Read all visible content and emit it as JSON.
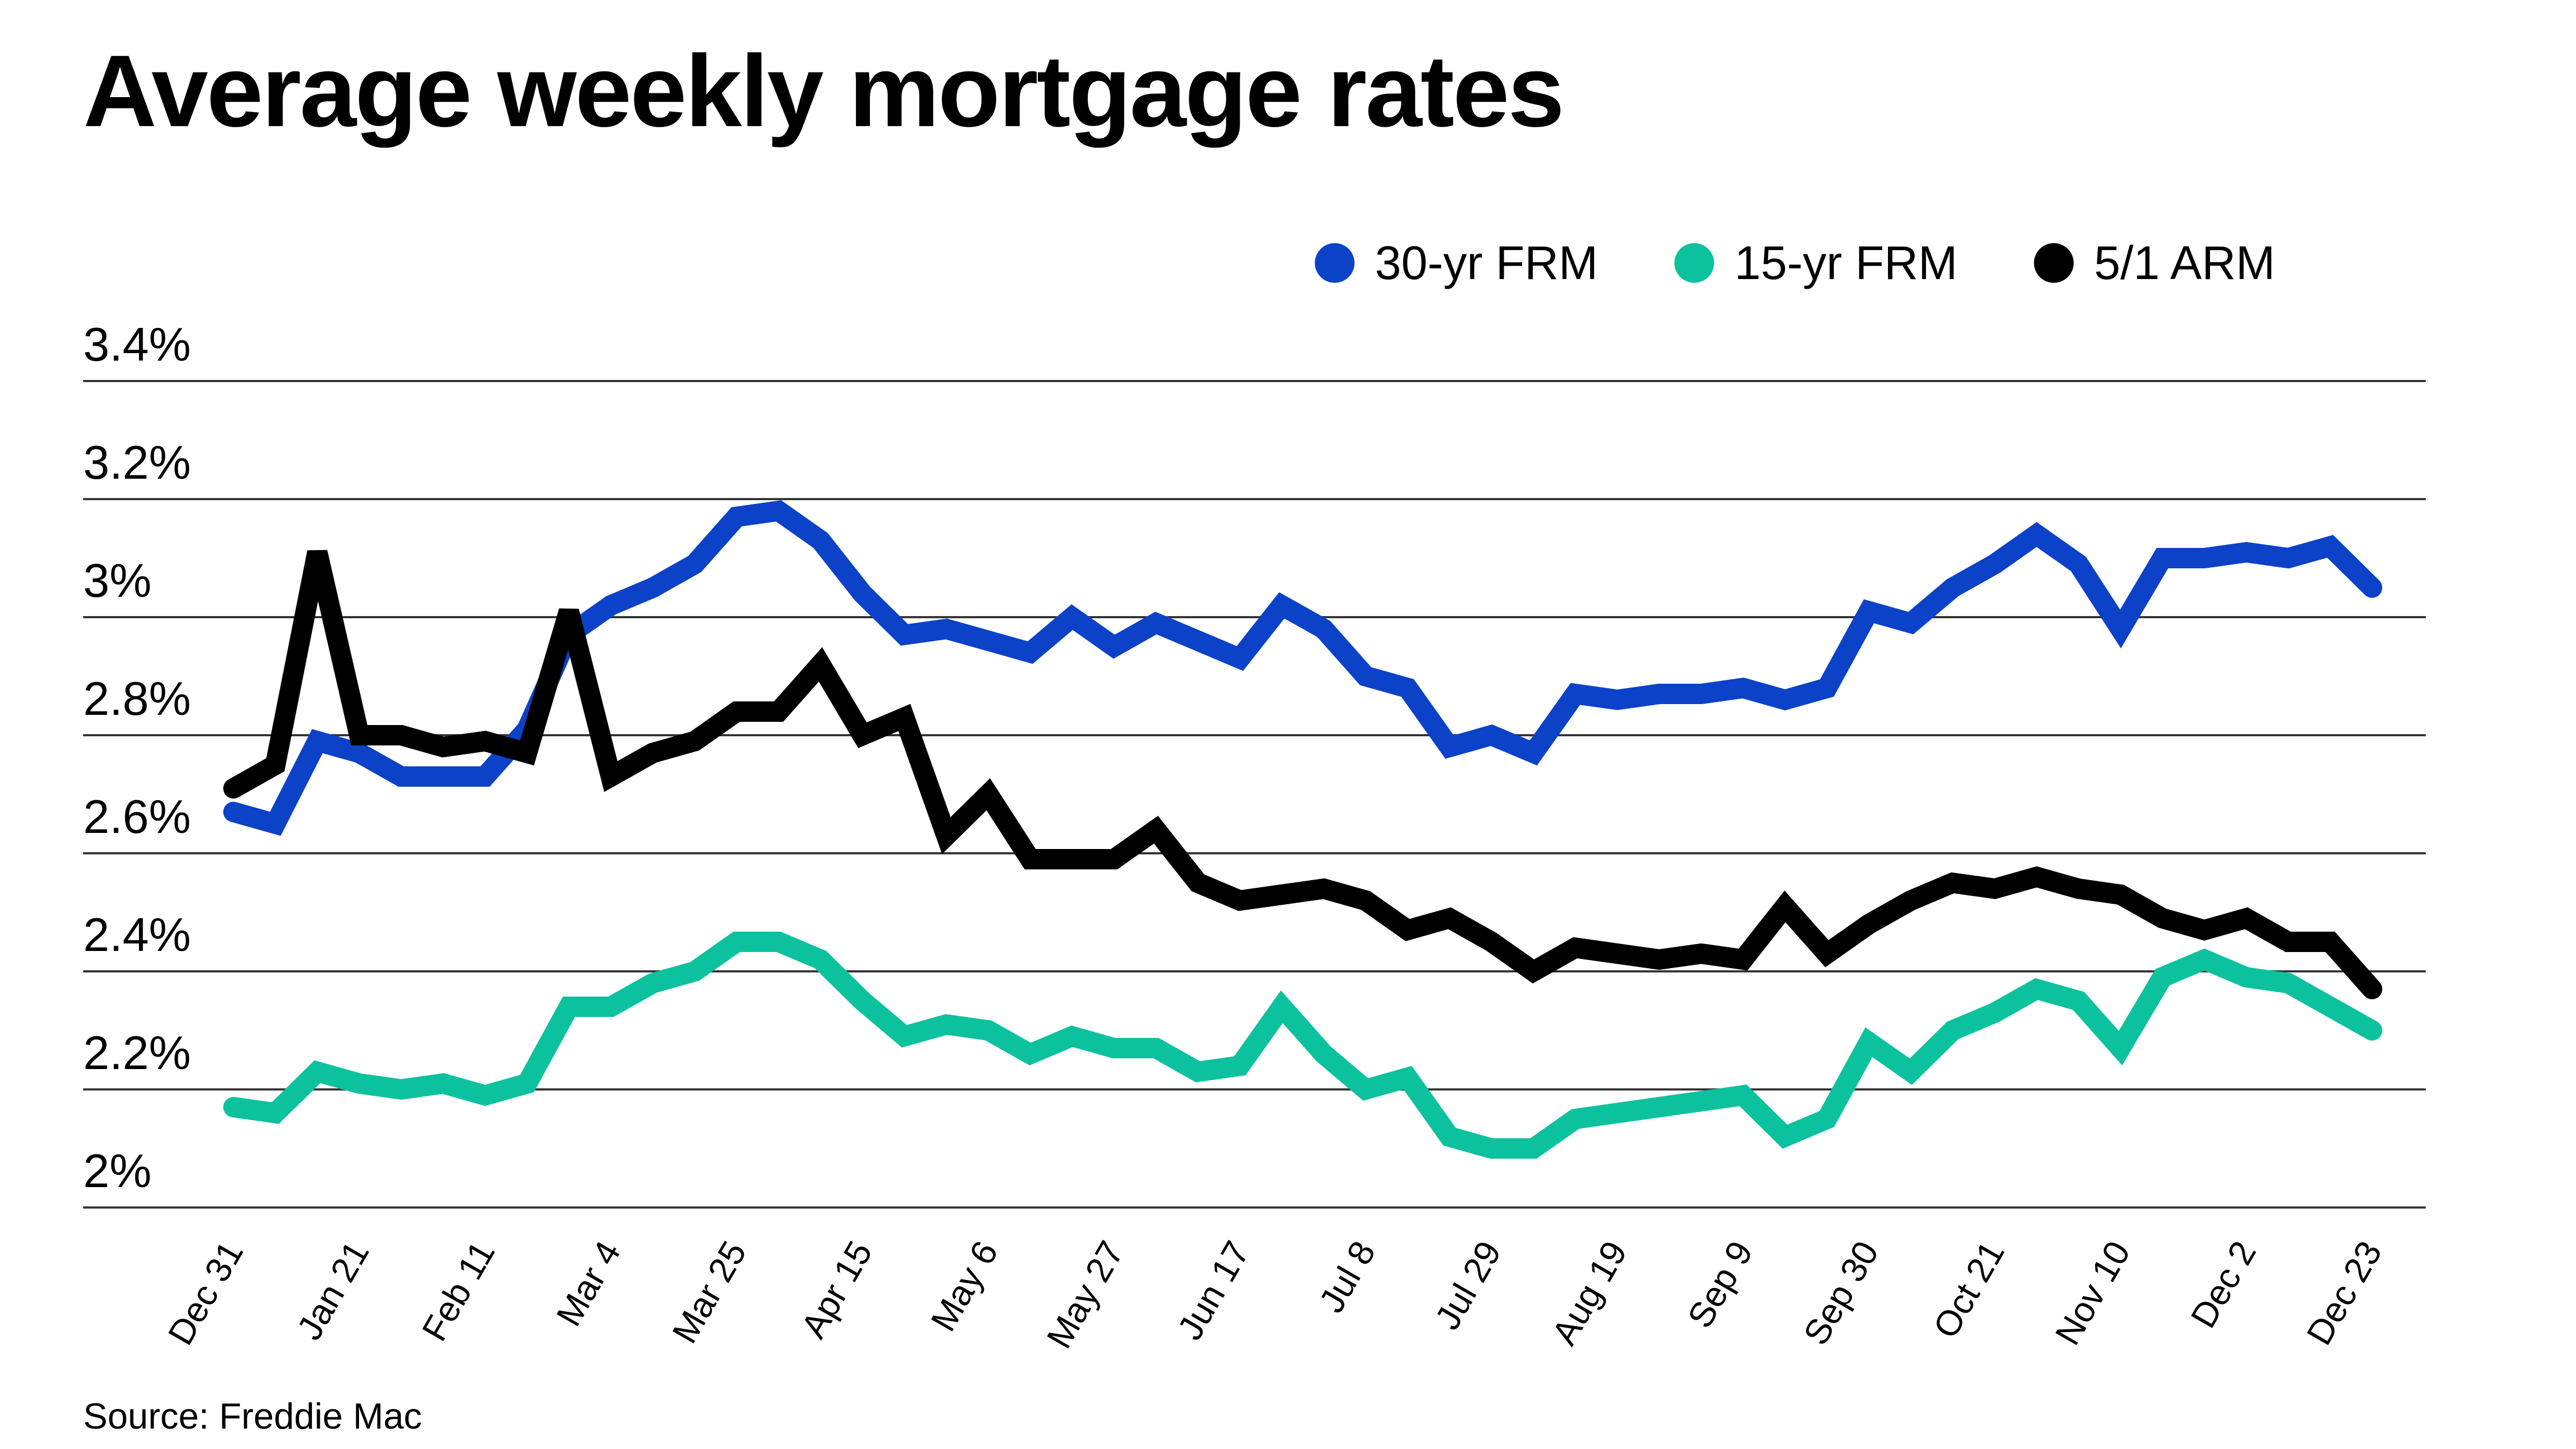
{
  "title": "Average weekly mortgage rates",
  "source": "Source: Freddie Mac",
  "chart_data": {
    "type": "line",
    "title": "Average weekly mortgage rates",
    "xlabel": "",
    "ylabel": "",
    "ylim": [
      2.0,
      3.4
    ],
    "yticks": [
      2.0,
      2.2,
      2.4,
      2.6,
      2.8,
      3.0,
      3.2,
      3.4
    ],
    "ytick_labels": [
      "2%",
      "2.2%",
      "2.4%",
      "2.6%",
      "2.8%",
      "3%",
      "3.2%",
      "3.4%"
    ],
    "grid": true,
    "legend_position": "top-right",
    "x": [
      "Dec 31",
      "Jan 7",
      "Jan 14",
      "Jan 21",
      "Jan 28",
      "Feb 4",
      "Feb 11",
      "Feb 18",
      "Feb 25",
      "Mar 4",
      "Mar 11",
      "Mar 18",
      "Mar 25",
      "Apr 1",
      "Apr 8",
      "Apr 15",
      "Apr 22",
      "Apr 29",
      "May 6",
      "May 13",
      "May 20",
      "May 27",
      "Jun 3",
      "Jun 10",
      "Jun 17",
      "Jun 24",
      "Jul 1",
      "Jul 8",
      "Jul 15",
      "Jul 22",
      "Jul 29",
      "Aug 5",
      "Aug 12",
      "Aug 19",
      "Aug 26",
      "Sep 2",
      "Sep 9",
      "Sep 16",
      "Sep 23",
      "Sep 30",
      "Oct 7",
      "Oct 14",
      "Oct 21",
      "Oct 28",
      "Nov 4",
      "Nov 10",
      "Nov 18",
      "Nov 24",
      "Dec 2",
      "Dec 9",
      "Dec 16",
      "Dec 23"
    ],
    "x_tick_labels": [
      "Dec 31",
      "Jan 21",
      "Feb 11",
      "Mar 4",
      "Mar 25",
      "Apr 15",
      "May 6",
      "May 27",
      "Jun 17",
      "Jul 8",
      "Jul 29",
      "Aug 19",
      "Sep 9",
      "Sep 30",
      "Oct 21",
      "Nov 10",
      "Dec 2",
      "Dec 23"
    ],
    "series": [
      {
        "name": "30-yr FRM",
        "color": "#0c42c8",
        "values": [
          2.67,
          2.65,
          2.79,
          2.77,
          2.73,
          2.73,
          2.73,
          2.81,
          2.97,
          3.02,
          3.05,
          3.09,
          3.17,
          3.18,
          3.13,
          3.04,
          2.97,
          2.98,
          2.96,
          2.94,
          3.0,
          2.95,
          2.99,
          2.96,
          2.93,
          3.02,
          2.98,
          2.9,
          2.88,
          2.78,
          2.8,
          2.77,
          2.87,
          2.86,
          2.87,
          2.87,
          2.88,
          2.86,
          2.88,
          3.01,
          2.99,
          3.05,
          3.09,
          3.14,
          3.09,
          2.98,
          3.1,
          3.1,
          3.11,
          3.1,
          3.12,
          3.05
        ]
      },
      {
        "name": "15-yr FRM",
        "color": "#0cc29e",
        "values": [
          2.17,
          2.16,
          2.23,
          2.21,
          2.2,
          2.21,
          2.19,
          2.21,
          2.34,
          2.34,
          2.38,
          2.4,
          2.45,
          2.45,
          2.42,
          2.35,
          2.29,
          2.31,
          2.3,
          2.26,
          2.29,
          2.27,
          2.27,
          2.23,
          2.24,
          2.34,
          2.26,
          2.2,
          2.22,
          2.12,
          2.1,
          2.1,
          2.15,
          2.16,
          2.17,
          2.18,
          2.19,
          2.12,
          2.15,
          2.28,
          2.23,
          2.3,
          2.33,
          2.37,
          2.35,
          2.27,
          2.39,
          2.42,
          2.39,
          2.38,
          2.34,
          2.3
        ]
      },
      {
        "name": "5/1 ARM",
        "color": "#000000",
        "values": [
          2.71,
          2.75,
          3.11,
          2.8,
          2.8,
          2.78,
          2.79,
          2.77,
          3.01,
          2.73,
          2.77,
          2.79,
          2.84,
          2.84,
          2.92,
          2.8,
          2.83,
          2.63,
          2.7,
          2.59,
          2.59,
          2.59,
          2.64,
          2.55,
          2.52,
          2.53,
          2.54,
          2.52,
          2.47,
          2.49,
          2.45,
          2.4,
          2.44,
          2.43,
          2.42,
          2.43,
          2.42,
          2.51,
          2.43,
          2.48,
          2.52,
          2.55,
          2.54,
          2.56,
          2.54,
          2.53,
          2.49,
          2.47,
          2.49,
          2.45,
          2.45,
          2.37
        ]
      }
    ]
  }
}
